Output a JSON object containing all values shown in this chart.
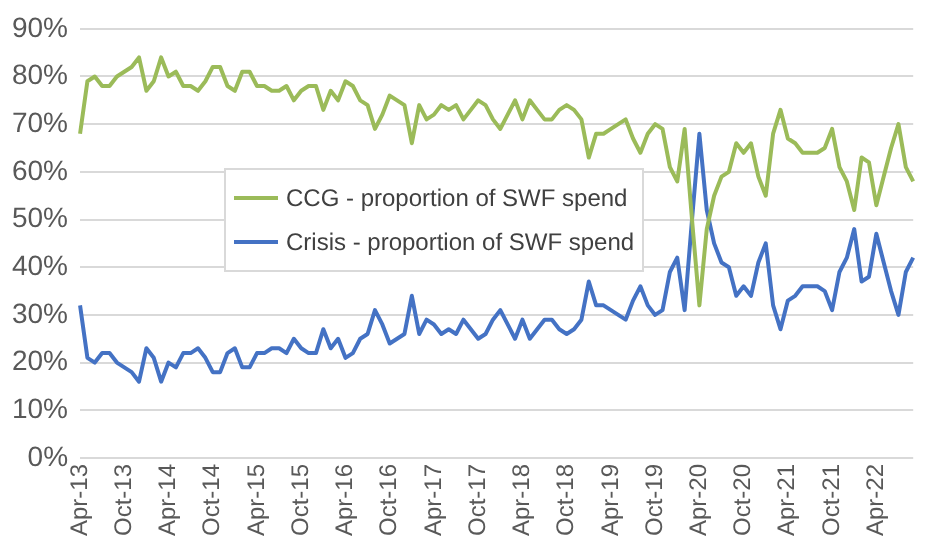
{
  "chart_data": {
    "type": "line",
    "categories": [
      "Apr-13",
      null,
      null,
      null,
      null,
      null,
      "Oct-13",
      null,
      null,
      null,
      null,
      null,
      "Apr-14",
      null,
      null,
      null,
      null,
      null,
      "Oct-14",
      null,
      null,
      null,
      null,
      null,
      "Apr-15",
      null,
      null,
      null,
      null,
      null,
      "Oct-15",
      null,
      null,
      null,
      null,
      null,
      "Apr-16",
      null,
      null,
      null,
      null,
      null,
      "Oct-16",
      null,
      null,
      null,
      null,
      null,
      "Apr-17",
      null,
      null,
      null,
      null,
      null,
      "Oct-17",
      null,
      null,
      null,
      null,
      null,
      "Apr-18",
      null,
      null,
      null,
      null,
      null,
      "Oct-18",
      null,
      null,
      null,
      null,
      null,
      "Apr-19",
      null,
      null,
      null,
      null,
      null,
      "Oct-19",
      null,
      null,
      null,
      null,
      null,
      "Apr-20",
      null,
      null,
      null,
      null,
      null,
      "Oct-20",
      null,
      null,
      null,
      null,
      null,
      "Apr-21",
      null,
      null,
      null,
      null,
      null,
      "Oct-21",
      null,
      null,
      null,
      null,
      null,
      "Apr-22",
      null,
      null,
      null,
      null,
      null
    ],
    "series": [
      {
        "name": "CCG - proportion of SWF spend",
        "color": "#9bbb59",
        "values": [
          68,
          79,
          80,
          78,
          78,
          80,
          81,
          82,
          84,
          77,
          79,
          84,
          80,
          81,
          78,
          78,
          77,
          79,
          82,
          82,
          78,
          77,
          81,
          81,
          78,
          78,
          77,
          77,
          78,
          75,
          77,
          78,
          78,
          73,
          77,
          75,
          79,
          78,
          75,
          74,
          69,
          72,
          76,
          75,
          74,
          66,
          74,
          71,
          72,
          74,
          73,
          74,
          71,
          73,
          75,
          74,
          71,
          69,
          72,
          75,
          71,
          75,
          73,
          71,
          71,
          73,
          74,
          73,
          71,
          63,
          68,
          68,
          69,
          70,
          71,
          67,
          64,
          68,
          70,
          69,
          61,
          58,
          69,
          50,
          32,
          48,
          55,
          59,
          60,
          66,
          64,
          66,
          59,
          55,
          68,
          73,
          67,
          66,
          64,
          64,
          64,
          65,
          69,
          61,
          58,
          52,
          63,
          62,
          53,
          59,
          65,
          70,
          61,
          58
        ]
      },
      {
        "name": "Crisis - proportion of SWF spend",
        "color": "#4472c4",
        "values": [
          32,
          21,
          20,
          22,
          22,
          20,
          19,
          18,
          16,
          23,
          21,
          16,
          20,
          19,
          22,
          22,
          23,
          21,
          18,
          18,
          22,
          23,
          19,
          19,
          22,
          22,
          23,
          23,
          22,
          25,
          23,
          22,
          22,
          27,
          23,
          25,
          21,
          22,
          25,
          26,
          31,
          28,
          24,
          25,
          26,
          34,
          26,
          29,
          28,
          26,
          27,
          26,
          29,
          27,
          25,
          26,
          29,
          31,
          28,
          25,
          29,
          25,
          27,
          29,
          29,
          27,
          26,
          27,
          29,
          37,
          32,
          32,
          31,
          30,
          29,
          33,
          36,
          32,
          30,
          31,
          39,
          42,
          31,
          50,
          68,
          52,
          45,
          41,
          40,
          34,
          36,
          34,
          41,
          45,
          32,
          27,
          33,
          34,
          36,
          36,
          36,
          35,
          31,
          39,
          42,
          48,
          37,
          38,
          47,
          41,
          35,
          30,
          39,
          42
        ]
      }
    ],
    "ylim": [
      0,
      90
    ],
    "yticks": [
      {
        "value": 0,
        "label": "0%"
      },
      {
        "value": 10,
        "label": "10%"
      },
      {
        "value": 20,
        "label": "20%"
      },
      {
        "value": 30,
        "label": "30%"
      },
      {
        "value": 40,
        "label": "40%"
      },
      {
        "value": 50,
        "label": "50%"
      },
      {
        "value": 60,
        "label": "60%"
      },
      {
        "value": 70,
        "label": "70%"
      },
      {
        "value": 80,
        "label": "80%"
      },
      {
        "value": 90,
        "label": "90%"
      }
    ],
    "grid": "y",
    "legend": "center",
    "marker": "none",
    "line_style": "solid"
  }
}
